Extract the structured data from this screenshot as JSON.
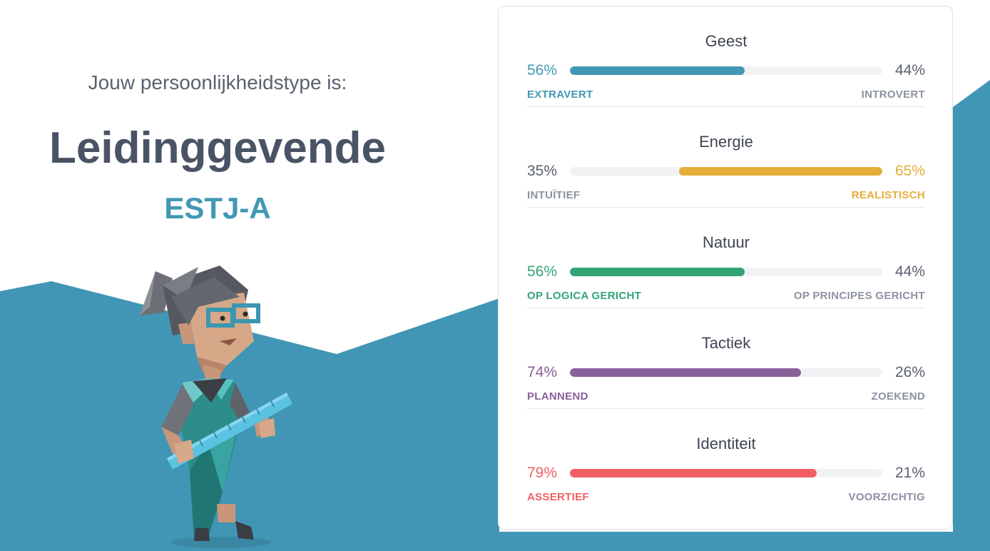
{
  "intro": "Jouw persoonlijkheidstype is:",
  "type_name": "Leidinggevende",
  "type_code": "ESTJ-A",
  "colors": {
    "background_band": "#4196b5",
    "title": "#4a5366",
    "code": "#4298b4",
    "neutral_text": "#5b6170",
    "neutral_label": "#8c93a0"
  },
  "traits": [
    {
      "title": "Geest",
      "left_pct": "56%",
      "right_pct": "44%",
      "left_label": "EXTRAVERT",
      "right_label": "INTROVERT",
      "dominant": "left",
      "value": 56,
      "color": "#4298b4"
    },
    {
      "title": "Energie",
      "left_pct": "35%",
      "right_pct": "65%",
      "left_label": "INTUÏTIEF",
      "right_label": "REALISTISCH",
      "dominant": "right",
      "value": 65,
      "color": "#e4ae3a"
    },
    {
      "title": "Natuur",
      "left_pct": "56%",
      "right_pct": "44%",
      "left_label": "OP LOGICA GERICHT",
      "right_label": "OP PRINCIPES GERICHT",
      "dominant": "left",
      "value": 56,
      "color": "#33a474"
    },
    {
      "title": "Tactiek",
      "left_pct": "74%",
      "right_pct": "26%",
      "left_label": "PLANNEND",
      "right_label": "ZOEKEND",
      "dominant": "left",
      "value": 74,
      "color": "#88619a"
    },
    {
      "title": "Identiteit",
      "left_pct": "79%",
      "right_pct": "21%",
      "left_label": "ASSERTIEF",
      "right_label": "VOORZICHTIG",
      "dominant": "left",
      "value": 79,
      "color": "#f25e62"
    }
  ]
}
